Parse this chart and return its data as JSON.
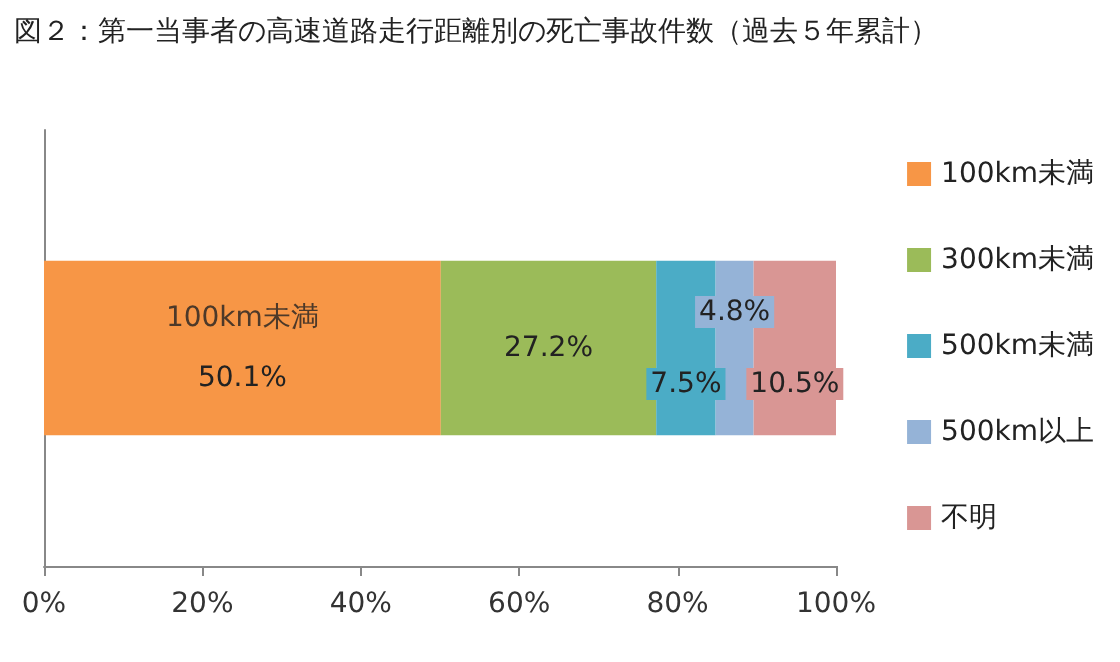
{
  "chart_data": {
    "type": "bar",
    "orientation": "horizontal",
    "stacked": true,
    "title": "図２：第一当事者の高速道路走行距離別の死亡事故件数（過去５年累計）",
    "categories": [
      null
    ],
    "series": [
      {
        "name": "100km未満",
        "color": "#f79646",
        "values": [
          50.1
        ],
        "value_labels": [
          "50.1%"
        ]
      },
      {
        "name": "300km未満",
        "color": "#9bbb59",
        "values": [
          27.2
        ],
        "value_labels": [
          "27.2%"
        ]
      },
      {
        "name": "500km未満",
        "color": "#4bacc6",
        "values": [
          7.5
        ],
        "value_labels": [
          "7.5%"
        ]
      },
      {
        "name": "500km以上",
        "color": "#95b3d7",
        "values": [
          4.8
        ],
        "value_labels": [
          "4.8%"
        ]
      },
      {
        "name": "不明",
        "color": "#d99694",
        "values": [
          10.5
        ],
        "value_labels": [
          "10.5%"
        ]
      }
    ],
    "annotations": [
      "100km未満"
    ],
    "xlim": [
      0,
      100
    ],
    "xticks": [
      {
        "value": 0,
        "label": "0%"
      },
      {
        "value": 20,
        "label": "20%"
      },
      {
        "value": 40,
        "label": "40%"
      },
      {
        "value": 60,
        "label": "60%"
      },
      {
        "value": 80,
        "label": "80%"
      },
      {
        "value": 100,
        "label": "100%"
      }
    ],
    "grid": false,
    "legend": "right"
  }
}
